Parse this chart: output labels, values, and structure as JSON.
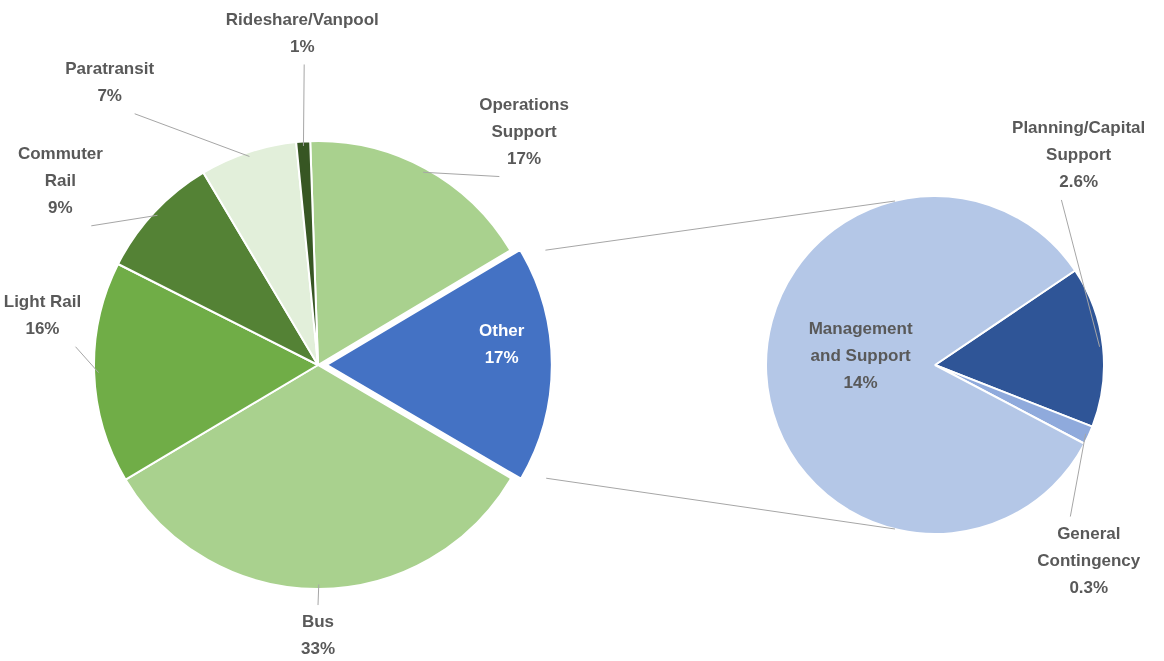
{
  "chart_data": [
    {
      "type": "pie",
      "categories": [
        "Operations Support",
        "Other",
        "Bus",
        "Light Rail",
        "Commuter Rail",
        "Paratransit",
        "Rideshare/Vanpool"
      ],
      "values": [
        17,
        17,
        33,
        16,
        9,
        7,
        1
      ],
      "colors": [
        "#a9d18e",
        "#4472c4",
        "#a9d18e",
        "#70ad47",
        "#548235",
        "#e2efda",
        "#375623"
      ],
      "value_labels": [
        "17%",
        "17%",
        "33%",
        "16%",
        "9%",
        "7%",
        "1%"
      ]
    },
    {
      "type": "pie",
      "categories": [
        "Planning/Capital Support",
        "General Contingency",
        "Management and Support"
      ],
      "values": [
        2.6,
        0.3,
        14
      ],
      "colors": [
        "#2f5597",
        "#8faadc",
        "#b4c7e7"
      ],
      "value_labels": [
        "2.6%",
        "0.3%",
        "14%"
      ]
    }
  ]
}
